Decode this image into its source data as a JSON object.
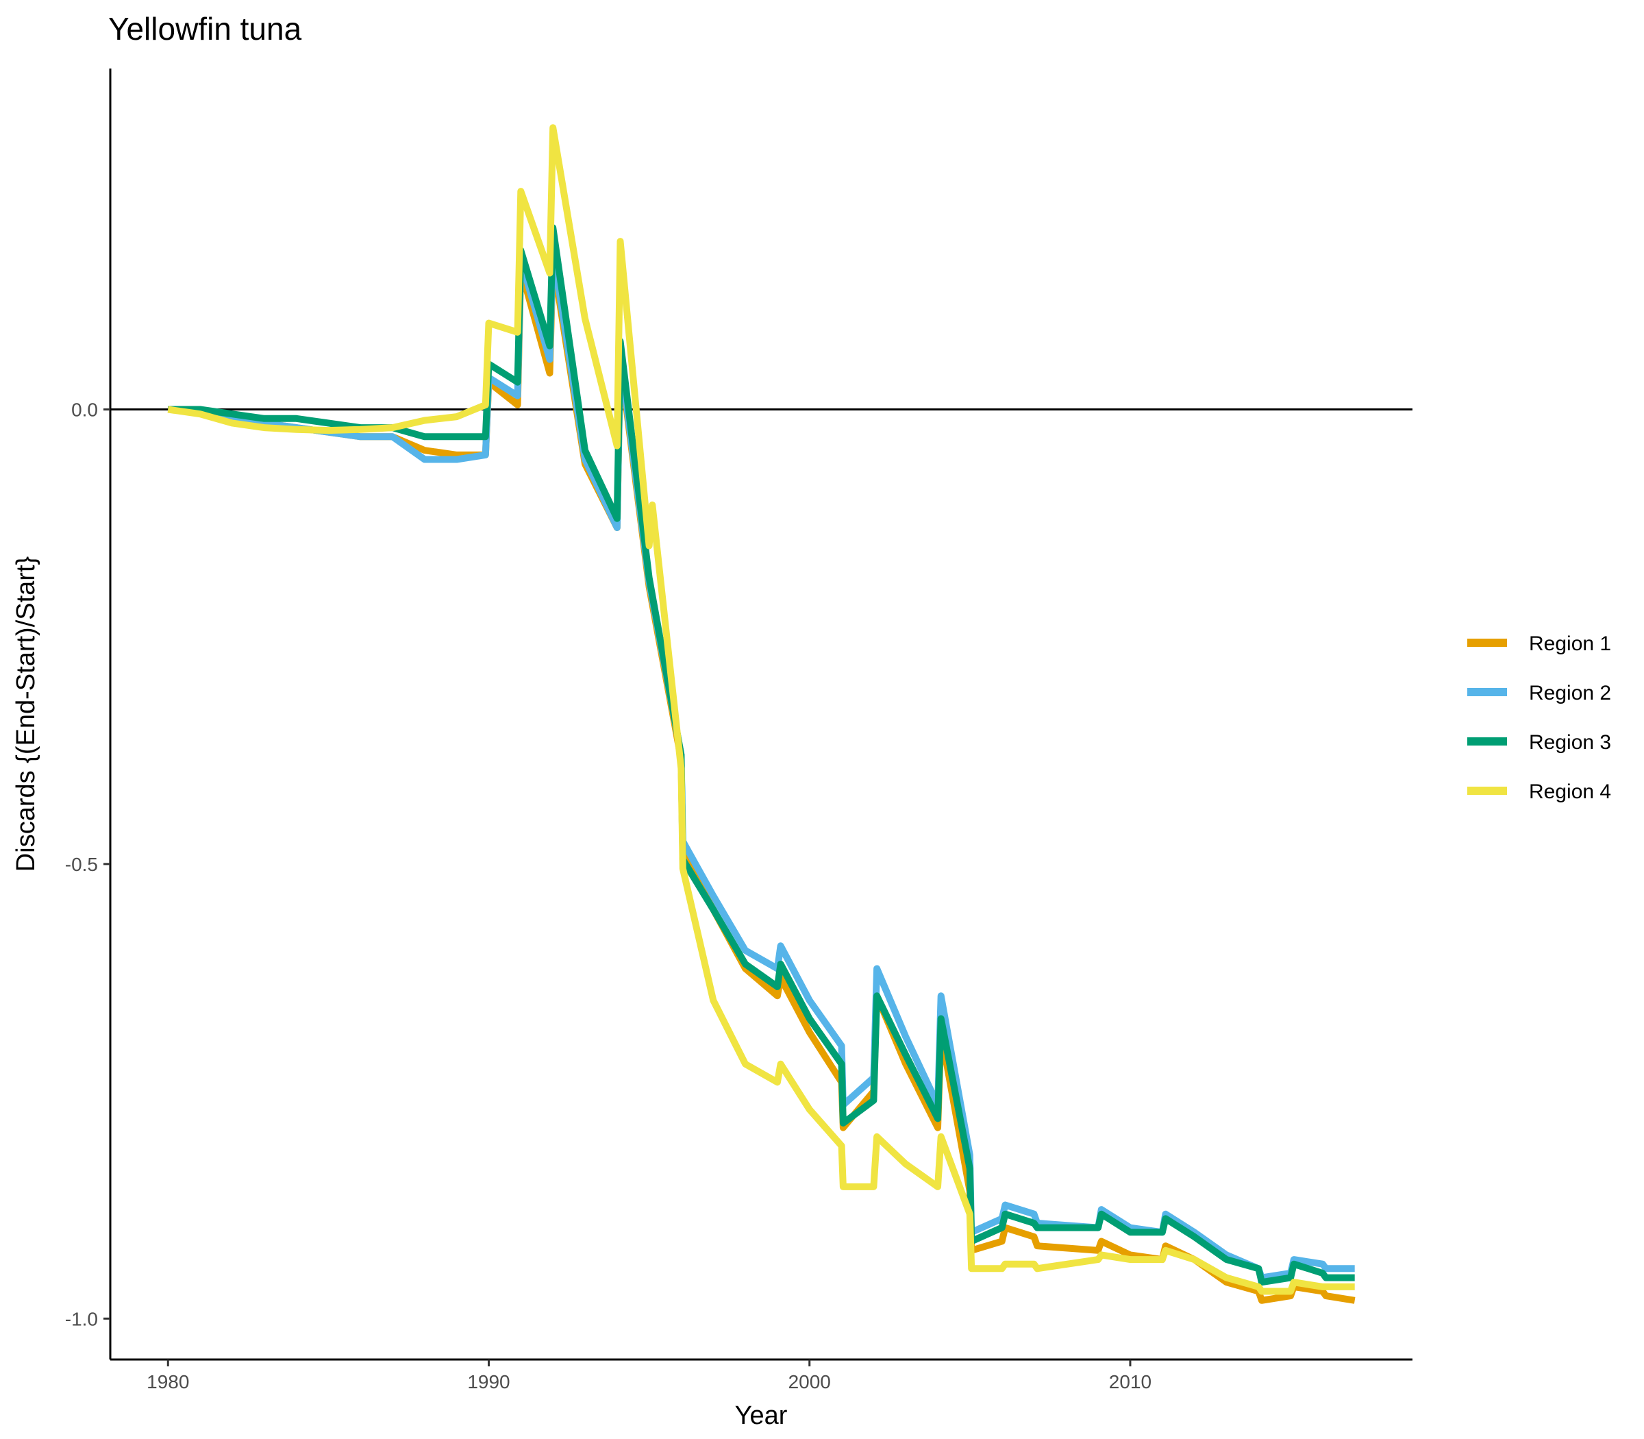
{
  "chart_data": {
    "type": "line",
    "title": "Yellowfin tuna",
    "xlabel": "Year",
    "ylabel": "Discards {(End-Start)/Start}",
    "xlim": [
      1978.2,
      2018.8
    ],
    "ylim": [
      -1.045,
      0.375
    ],
    "x_ticks": [
      {
        "value": 1980,
        "label": "1980"
      },
      {
        "value": 1990,
        "label": "1990"
      },
      {
        "value": 2000,
        "label": "2000"
      },
      {
        "value": 2010,
        "label": "2010"
      }
    ],
    "y_ticks": [
      {
        "value": 0,
        "label": "0.0"
      },
      {
        "value": -0.5,
        "label": "-0.5"
      },
      {
        "value": -1,
        "label": "-1.0"
      }
    ],
    "reference_line_y": 0,
    "grid": false,
    "legend_position": "right",
    "series": [
      {
        "name": "Region 1",
        "color": "#E69F00",
        "points": [
          [
            1980,
            0
          ],
          [
            1981,
            0
          ],
          [
            1982,
            -0.01
          ],
          [
            1983,
            -0.015
          ],
          [
            1984,
            -0.02
          ],
          [
            1985,
            -0.025
          ],
          [
            1986,
            -0.03
          ],
          [
            1987,
            -0.03
          ],
          [
            1988,
            -0.045
          ],
          [
            1989,
            -0.05
          ],
          [
            1989.9,
            -0.05
          ],
          [
            1990,
            0.03
          ],
          [
            1990.9,
            0.005
          ],
          [
            1991,
            0.155
          ],
          [
            1991.9,
            0.04
          ],
          [
            1992,
            0.165
          ],
          [
            1993,
            -0.06
          ],
          [
            1994,
            -0.13
          ],
          [
            1994.1,
            0.055
          ],
          [
            1995,
            -0.195
          ],
          [
            1996,
            -0.385
          ],
          [
            1996.05,
            -0.49
          ],
          [
            1997,
            -0.55
          ],
          [
            1998,
            -0.615
          ],
          [
            1999,
            -0.645
          ],
          [
            1999.1,
            -0.625
          ],
          [
            2000,
            -0.685
          ],
          [
            2001,
            -0.74
          ],
          [
            2001.05,
            -0.79
          ],
          [
            2002,
            -0.75
          ],
          [
            2002.1,
            -0.645
          ],
          [
            2003,
            -0.72
          ],
          [
            2004,
            -0.79
          ],
          [
            2004.1,
            -0.685
          ],
          [
            2005,
            -0.86
          ],
          [
            2005.05,
            -0.925
          ],
          [
            2006,
            -0.915
          ],
          [
            2006.1,
            -0.9
          ],
          [
            2007,
            -0.91
          ],
          [
            2007.1,
            -0.92
          ],
          [
            2009,
            -0.925
          ],
          [
            2009.1,
            -0.915
          ],
          [
            2010,
            -0.93
          ],
          [
            2011,
            -0.935
          ],
          [
            2011.1,
            -0.92
          ],
          [
            2012,
            -0.935
          ],
          [
            2013,
            -0.96
          ],
          [
            2014,
            -0.97
          ],
          [
            2014.1,
            -0.98
          ],
          [
            2015,
            -0.975
          ],
          [
            2015.1,
            -0.965
          ],
          [
            2016,
            -0.97
          ],
          [
            2016.1,
            -0.975
          ],
          [
            2017,
            -0.98
          ]
        ]
      },
      {
        "name": "Region 2",
        "color": "#56B4E9",
        "points": [
          [
            1980,
            0
          ],
          [
            1981,
            0
          ],
          [
            1982,
            -0.01
          ],
          [
            1983,
            -0.015
          ],
          [
            1984,
            -0.02
          ],
          [
            1985,
            -0.025
          ],
          [
            1986,
            -0.03
          ],
          [
            1987,
            -0.03
          ],
          [
            1988,
            -0.055
          ],
          [
            1989,
            -0.055
          ],
          [
            1989.9,
            -0.05
          ],
          [
            1990,
            0.035
          ],
          [
            1990.9,
            0.015
          ],
          [
            1991,
            0.165
          ],
          [
            1991.9,
            0.055
          ],
          [
            1992,
            0.175
          ],
          [
            1993,
            -0.055
          ],
          [
            1994,
            -0.13
          ],
          [
            1994.1,
            0.06
          ],
          [
            1995,
            -0.19
          ],
          [
            1996,
            -0.38
          ],
          [
            1996.05,
            -0.475
          ],
          [
            1997,
            -0.535
          ],
          [
            1998,
            -0.595
          ],
          [
            1999,
            -0.615
          ],
          [
            1999.1,
            -0.59
          ],
          [
            2000,
            -0.65
          ],
          [
            2001,
            -0.7
          ],
          [
            2001.05,
            -0.765
          ],
          [
            2002,
            -0.735
          ],
          [
            2002.1,
            -0.615
          ],
          [
            2003,
            -0.69
          ],
          [
            2004,
            -0.765
          ],
          [
            2004.1,
            -0.645
          ],
          [
            2005,
            -0.82
          ],
          [
            2005.05,
            -0.905
          ],
          [
            2006,
            -0.89
          ],
          [
            2006.1,
            -0.875
          ],
          [
            2007,
            -0.885
          ],
          [
            2007.1,
            -0.895
          ],
          [
            2009,
            -0.9
          ],
          [
            2009.1,
            -0.88
          ],
          [
            2010,
            -0.9
          ],
          [
            2011,
            -0.905
          ],
          [
            2011.1,
            -0.885
          ],
          [
            2012,
            -0.905
          ],
          [
            2013,
            -0.93
          ],
          [
            2014,
            -0.945
          ],
          [
            2014.1,
            -0.955
          ],
          [
            2015,
            -0.95
          ],
          [
            2015.1,
            -0.935
          ],
          [
            2016,
            -0.94
          ],
          [
            2016.1,
            -0.945
          ],
          [
            2017,
            -0.945
          ]
        ]
      },
      {
        "name": "Region 3",
        "color": "#009E73",
        "points": [
          [
            1980,
            0
          ],
          [
            1981,
            0
          ],
          [
            1982,
            -0.005
          ],
          [
            1983,
            -0.01
          ],
          [
            1984,
            -0.01
          ],
          [
            1985,
            -0.015
          ],
          [
            1986,
            -0.02
          ],
          [
            1987,
            -0.02
          ],
          [
            1988,
            -0.03
          ],
          [
            1989,
            -0.03
          ],
          [
            1989.9,
            -0.03
          ],
          [
            1990,
            0.05
          ],
          [
            1990.9,
            0.03
          ],
          [
            1991,
            0.175
          ],
          [
            1991.9,
            0.07
          ],
          [
            1992,
            0.2
          ],
          [
            1993,
            -0.045
          ],
          [
            1994,
            -0.12
          ],
          [
            1994.1,
            0.075
          ],
          [
            1995,
            -0.185
          ],
          [
            1996,
            -0.38
          ],
          [
            1996.05,
            -0.495
          ],
          [
            1997,
            -0.55
          ],
          [
            1998,
            -0.61
          ],
          [
            1999,
            -0.635
          ],
          [
            1999.1,
            -0.61
          ],
          [
            2000,
            -0.67
          ],
          [
            2001,
            -0.72
          ],
          [
            2001.05,
            -0.785
          ],
          [
            2002,
            -0.76
          ],
          [
            2002.1,
            -0.645
          ],
          [
            2003,
            -0.71
          ],
          [
            2004,
            -0.78
          ],
          [
            2004.1,
            -0.67
          ],
          [
            2005,
            -0.835
          ],
          [
            2005.05,
            -0.915
          ],
          [
            2006,
            -0.9
          ],
          [
            2006.1,
            -0.885
          ],
          [
            2007,
            -0.895
          ],
          [
            2007.1,
            -0.9
          ],
          [
            2009,
            -0.9
          ],
          [
            2009.1,
            -0.885
          ],
          [
            2010,
            -0.905
          ],
          [
            2011,
            -0.905
          ],
          [
            2011.1,
            -0.89
          ],
          [
            2012,
            -0.91
          ],
          [
            2013,
            -0.935
          ],
          [
            2014,
            -0.945
          ],
          [
            2014.1,
            -0.96
          ],
          [
            2015,
            -0.955
          ],
          [
            2015.1,
            -0.94
          ],
          [
            2016,
            -0.95
          ],
          [
            2016.1,
            -0.955
          ],
          [
            2017,
            -0.955
          ]
        ]
      },
      {
        "name": "Region 4",
        "color": "#F0E442",
        "points": [
          [
            1980,
            0
          ],
          [
            1981,
            -0.005
          ],
          [
            1982,
            -0.015
          ],
          [
            1983,
            -0.02
          ],
          [
            1984,
            -0.022
          ],
          [
            1985,
            -0.023
          ],
          [
            1986,
            -0.022
          ],
          [
            1987,
            -0.02
          ],
          [
            1988,
            -0.012
          ],
          [
            1989,
            -0.008
          ],
          [
            1989.9,
            0.005
          ],
          [
            1990,
            0.095
          ],
          [
            1990.9,
            0.085
          ],
          [
            1991,
            0.24
          ],
          [
            1991.9,
            0.15
          ],
          [
            1992,
            0.31
          ],
          [
            1993,
            0.1
          ],
          [
            1994,
            -0.04
          ],
          [
            1994.1,
            0.185
          ],
          [
            1995,
            -0.15
          ],
          [
            1995.1,
            -0.105
          ],
          [
            1996,
            -0.395
          ],
          [
            1996.05,
            -0.505
          ],
          [
            1997,
            -0.65
          ],
          [
            1998,
            -0.72
          ],
          [
            1999,
            -0.74
          ],
          [
            1999.1,
            -0.72
          ],
          [
            2000,
            -0.77
          ],
          [
            2001,
            -0.81
          ],
          [
            2001.05,
            -0.855
          ],
          [
            2002,
            -0.855
          ],
          [
            2002.1,
            -0.8
          ],
          [
            2003,
            -0.83
          ],
          [
            2004,
            -0.855
          ],
          [
            2004.1,
            -0.8
          ],
          [
            2005,
            -0.885
          ],
          [
            2005.05,
            -0.945
          ],
          [
            2006,
            -0.945
          ],
          [
            2006.1,
            -0.94
          ],
          [
            2007,
            -0.94
          ],
          [
            2007.1,
            -0.945
          ],
          [
            2009,
            -0.935
          ],
          [
            2009.1,
            -0.93
          ],
          [
            2010,
            -0.935
          ],
          [
            2011,
            -0.935
          ],
          [
            2011.1,
            -0.925
          ],
          [
            2012,
            -0.935
          ],
          [
            2013,
            -0.955
          ],
          [
            2014,
            -0.965
          ],
          [
            2014.1,
            -0.97
          ],
          [
            2015,
            -0.97
          ],
          [
            2015.1,
            -0.96
          ],
          [
            2016,
            -0.965
          ],
          [
            2016.1,
            -0.965
          ],
          [
            2017,
            -0.965
          ]
        ]
      }
    ]
  }
}
